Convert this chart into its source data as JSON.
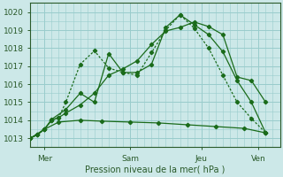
{
  "bg_color": "#cce8e8",
  "grid_color": "#99cccc",
  "line_color": "#1a6b1a",
  "xlabel": "Pression niveau de la mer( hPa )",
  "ylim": [
    1012.5,
    1020.5
  ],
  "yticks": [
    1013,
    1014,
    1015,
    1016,
    1017,
    1018,
    1019,
    1020
  ],
  "xtick_labels": [
    "Mer",
    "Sam",
    "Jeu",
    "Ven"
  ],
  "xtick_pos": [
    2,
    14,
    24,
    32
  ],
  "xlim": [
    0,
    35
  ],
  "num_xminor": 35,
  "series1_x": [
    0,
    1,
    2,
    3,
    4,
    5,
    7,
    9,
    11,
    13,
    15,
    17,
    19,
    21,
    23,
    25,
    27,
    29,
    31,
    33
  ],
  "series1_y": [
    1013.0,
    1013.2,
    1013.5,
    1014.0,
    1014.15,
    1014.4,
    1014.85,
    1015.5,
    1016.5,
    1016.85,
    1017.3,
    1018.2,
    1018.95,
    1019.15,
    1019.45,
    1019.2,
    1018.75,
    1016.4,
    1016.2,
    1015.0
  ],
  "series2_x": [
    0,
    1,
    2,
    3,
    4,
    5,
    7,
    9,
    11,
    13,
    15,
    17,
    19,
    21,
    23,
    25,
    27,
    29,
    31,
    33
  ],
  "series2_y": [
    1013.0,
    1013.2,
    1013.5,
    1014.0,
    1014.15,
    1015.0,
    1017.1,
    1017.85,
    1016.9,
    1016.65,
    1016.5,
    1017.75,
    1019.0,
    1019.85,
    1019.1,
    1018.0,
    1016.5,
    1015.0,
    1014.1,
    1013.3
  ],
  "series3_x": [
    0,
    1,
    2,
    3,
    5,
    7,
    9,
    11,
    13,
    15,
    17,
    19,
    21,
    23,
    25,
    27,
    29,
    31,
    33
  ],
  "series3_y": [
    1013.0,
    1013.2,
    1013.5,
    1014.05,
    1014.6,
    1015.5,
    1015.0,
    1017.7,
    1016.65,
    1016.65,
    1017.1,
    1019.15,
    1019.85,
    1019.3,
    1018.75,
    1017.8,
    1016.2,
    1015.0,
    1013.3
  ],
  "series4_x": [
    0,
    2,
    4,
    7,
    10,
    14,
    18,
    22,
    26,
    30,
    33
  ],
  "series4_y": [
    1013.0,
    1013.5,
    1013.9,
    1014.0,
    1013.95,
    1013.9,
    1013.85,
    1013.75,
    1013.65,
    1013.55,
    1013.3
  ]
}
